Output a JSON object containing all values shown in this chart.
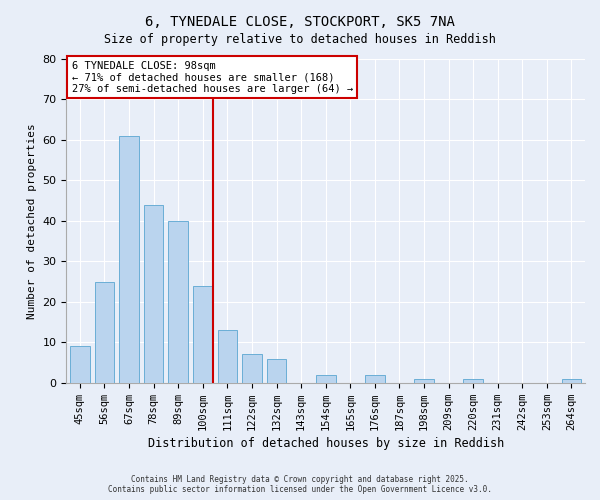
{
  "title": "6, TYNEDALE CLOSE, STOCKPORT, SK5 7NA",
  "subtitle": "Size of property relative to detached houses in Reddish",
  "xlabel": "Distribution of detached houses by size in Reddish",
  "ylabel": "Number of detached properties",
  "categories": [
    "45sqm",
    "56sqm",
    "67sqm",
    "78sqm",
    "89sqm",
    "100sqm",
    "111sqm",
    "122sqm",
    "132sqm",
    "143sqm",
    "154sqm",
    "165sqm",
    "176sqm",
    "187sqm",
    "198sqm",
    "209sqm",
    "220sqm",
    "231sqm",
    "242sqm",
    "253sqm",
    "264sqm"
  ],
  "values": [
    9,
    25,
    61,
    44,
    40,
    24,
    13,
    7,
    6,
    0,
    2,
    0,
    2,
    0,
    1,
    0,
    1,
    0,
    0,
    0,
    1
  ],
  "bar_color": "#bad4ee",
  "bar_edge_color": "#6aaed6",
  "vline_index": 5,
  "vline_color": "#cc0000",
  "annotation_title": "6 TYNEDALE CLOSE: 98sqm",
  "annotation_line1": "← 71% of detached houses are smaller (168)",
  "annotation_line2": "27% of semi-detached houses are larger (64) →",
  "annotation_box_facecolor": "#ffffff",
  "annotation_box_edgecolor": "#cc0000",
  "ylim": [
    0,
    80
  ],
  "yticks": [
    0,
    10,
    20,
    30,
    40,
    50,
    60,
    70,
    80
  ],
  "background_color": "#e8eef8",
  "grid_color": "#ffffff",
  "footer1": "Contains HM Land Registry data © Crown copyright and database right 2025.",
  "footer2": "Contains public sector information licensed under the Open Government Licence v3.0."
}
